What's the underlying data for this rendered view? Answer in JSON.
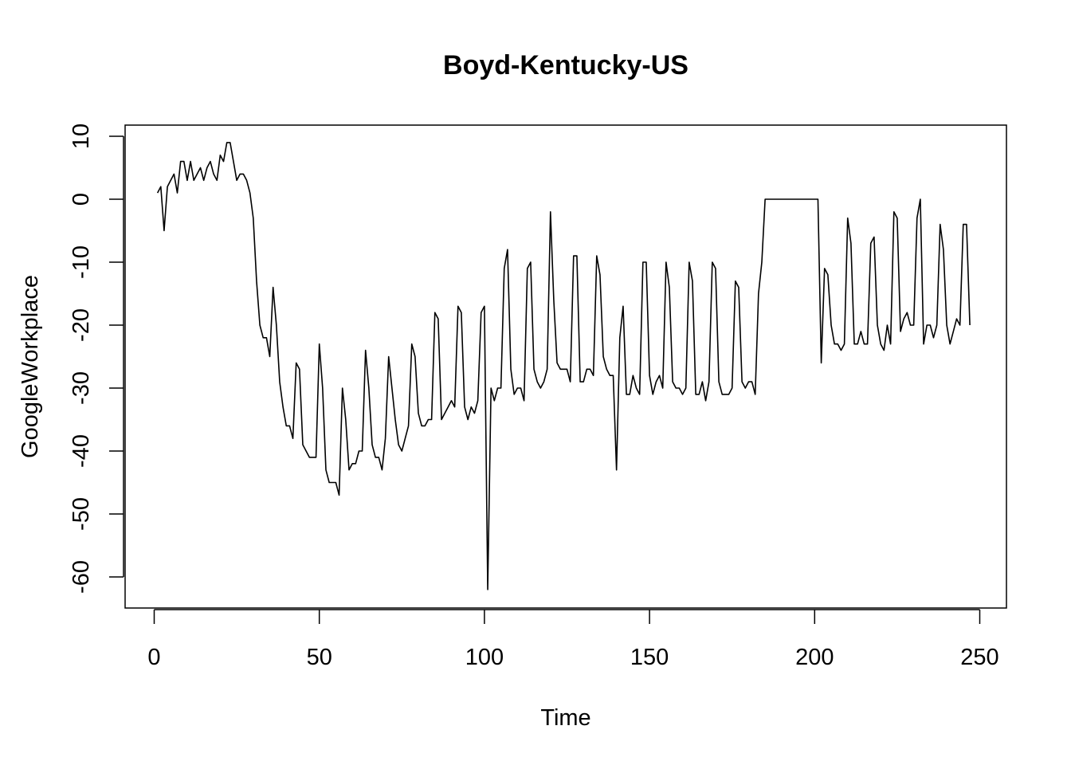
{
  "chart_data": {
    "type": "line",
    "title": "Boyd-Kentucky-US",
    "xlabel": "Time",
    "ylabel": "GoogleWorkplace",
    "xlim": [
      0,
      250
    ],
    "ylim": [
      -60,
      10
    ],
    "x_ticks": [
      0,
      50,
      100,
      150,
      200,
      250
    ],
    "y_ticks": [
      -60,
      -50,
      -40,
      -30,
      -20,
      -10,
      0,
      10
    ],
    "grid": false,
    "series": [
      {
        "color": "#000000",
        "x_start": 1,
        "values": [
          1,
          2,
          -5,
          2,
          3,
          4,
          1,
          6,
          6,
          3,
          6,
          3,
          4,
          5,
          3,
          5,
          6,
          4,
          3,
          7,
          6,
          9,
          9,
          6,
          3,
          4,
          4,
          3,
          1,
          -3,
          -13,
          -20,
          -22,
          -22,
          -25,
          -14,
          -20,
          -29,
          -33,
          -36,
          -36,
          -38,
          -26,
          -27,
          -39,
          -40,
          -41,
          -41,
          -41,
          -23,
          -30,
          -43,
          -45,
          -45,
          -45,
          -47,
          -30,
          -35,
          -43,
          -42,
          -42,
          -40,
          -40,
          -24,
          -30,
          -39,
          -41,
          -41,
          -43,
          -38,
          -25,
          -30,
          -35,
          -39,
          -40,
          -38,
          -36,
          -23,
          -25,
          -34,
          -36,
          -36,
          -35,
          -35,
          -18,
          -19,
          -35,
          -34,
          -33,
          -32,
          -33,
          -17,
          -18,
          -33,
          -35,
          -33,
          -34,
          -32,
          -18,
          -17,
          -62,
          -30,
          -32,
          -30,
          -30,
          -11,
          -8,
          -27,
          -31,
          -30,
          -30,
          -32,
          -11,
          -10,
          -27,
          -29,
          -30,
          -29,
          -27,
          -2,
          -16,
          -26,
          -27,
          -27,
          -27,
          -29,
          -9,
          -9,
          -29,
          -29,
          -27,
          -27,
          -28,
          -9,
          -12,
          -25,
          -27,
          -28,
          -28,
          -43,
          -22,
          -17,
          -31,
          -31,
          -28,
          -30,
          -31,
          -10,
          -10,
          -28,
          -31,
          -29,
          -28,
          -30,
          -10,
          -14,
          -29,
          -30,
          -30,
          -31,
          -30,
          -10,
          -13,
          -31,
          -31,
          -29,
          -32,
          -29,
          -10,
          -11,
          -29,
          -31,
          -31,
          -31,
          -30,
          -13,
          -14,
          -29,
          -30,
          -29,
          -29,
          -31,
          -15,
          -10,
          0,
          0,
          0,
          0,
          0,
          0,
          0,
          0,
          0,
          0,
          0,
          0,
          0,
          0,
          0,
          0,
          0,
          -26,
          -11,
          -12,
          -20,
          -23,
          -23,
          -24,
          -23,
          -3,
          -7,
          -23,
          -23,
          -21,
          -23,
          -23,
          -7,
          -6,
          -20,
          -23,
          -24,
          -20,
          -23,
          -2,
          -3,
          -21,
          -19,
          -18,
          -20,
          -20,
          -3,
          0,
          -23,
          -20,
          -20,
          -22,
          -20,
          -4,
          -8,
          -20,
          -23,
          -21,
          -19,
          -20,
          -4,
          -4,
          -20
        ]
      }
    ]
  }
}
